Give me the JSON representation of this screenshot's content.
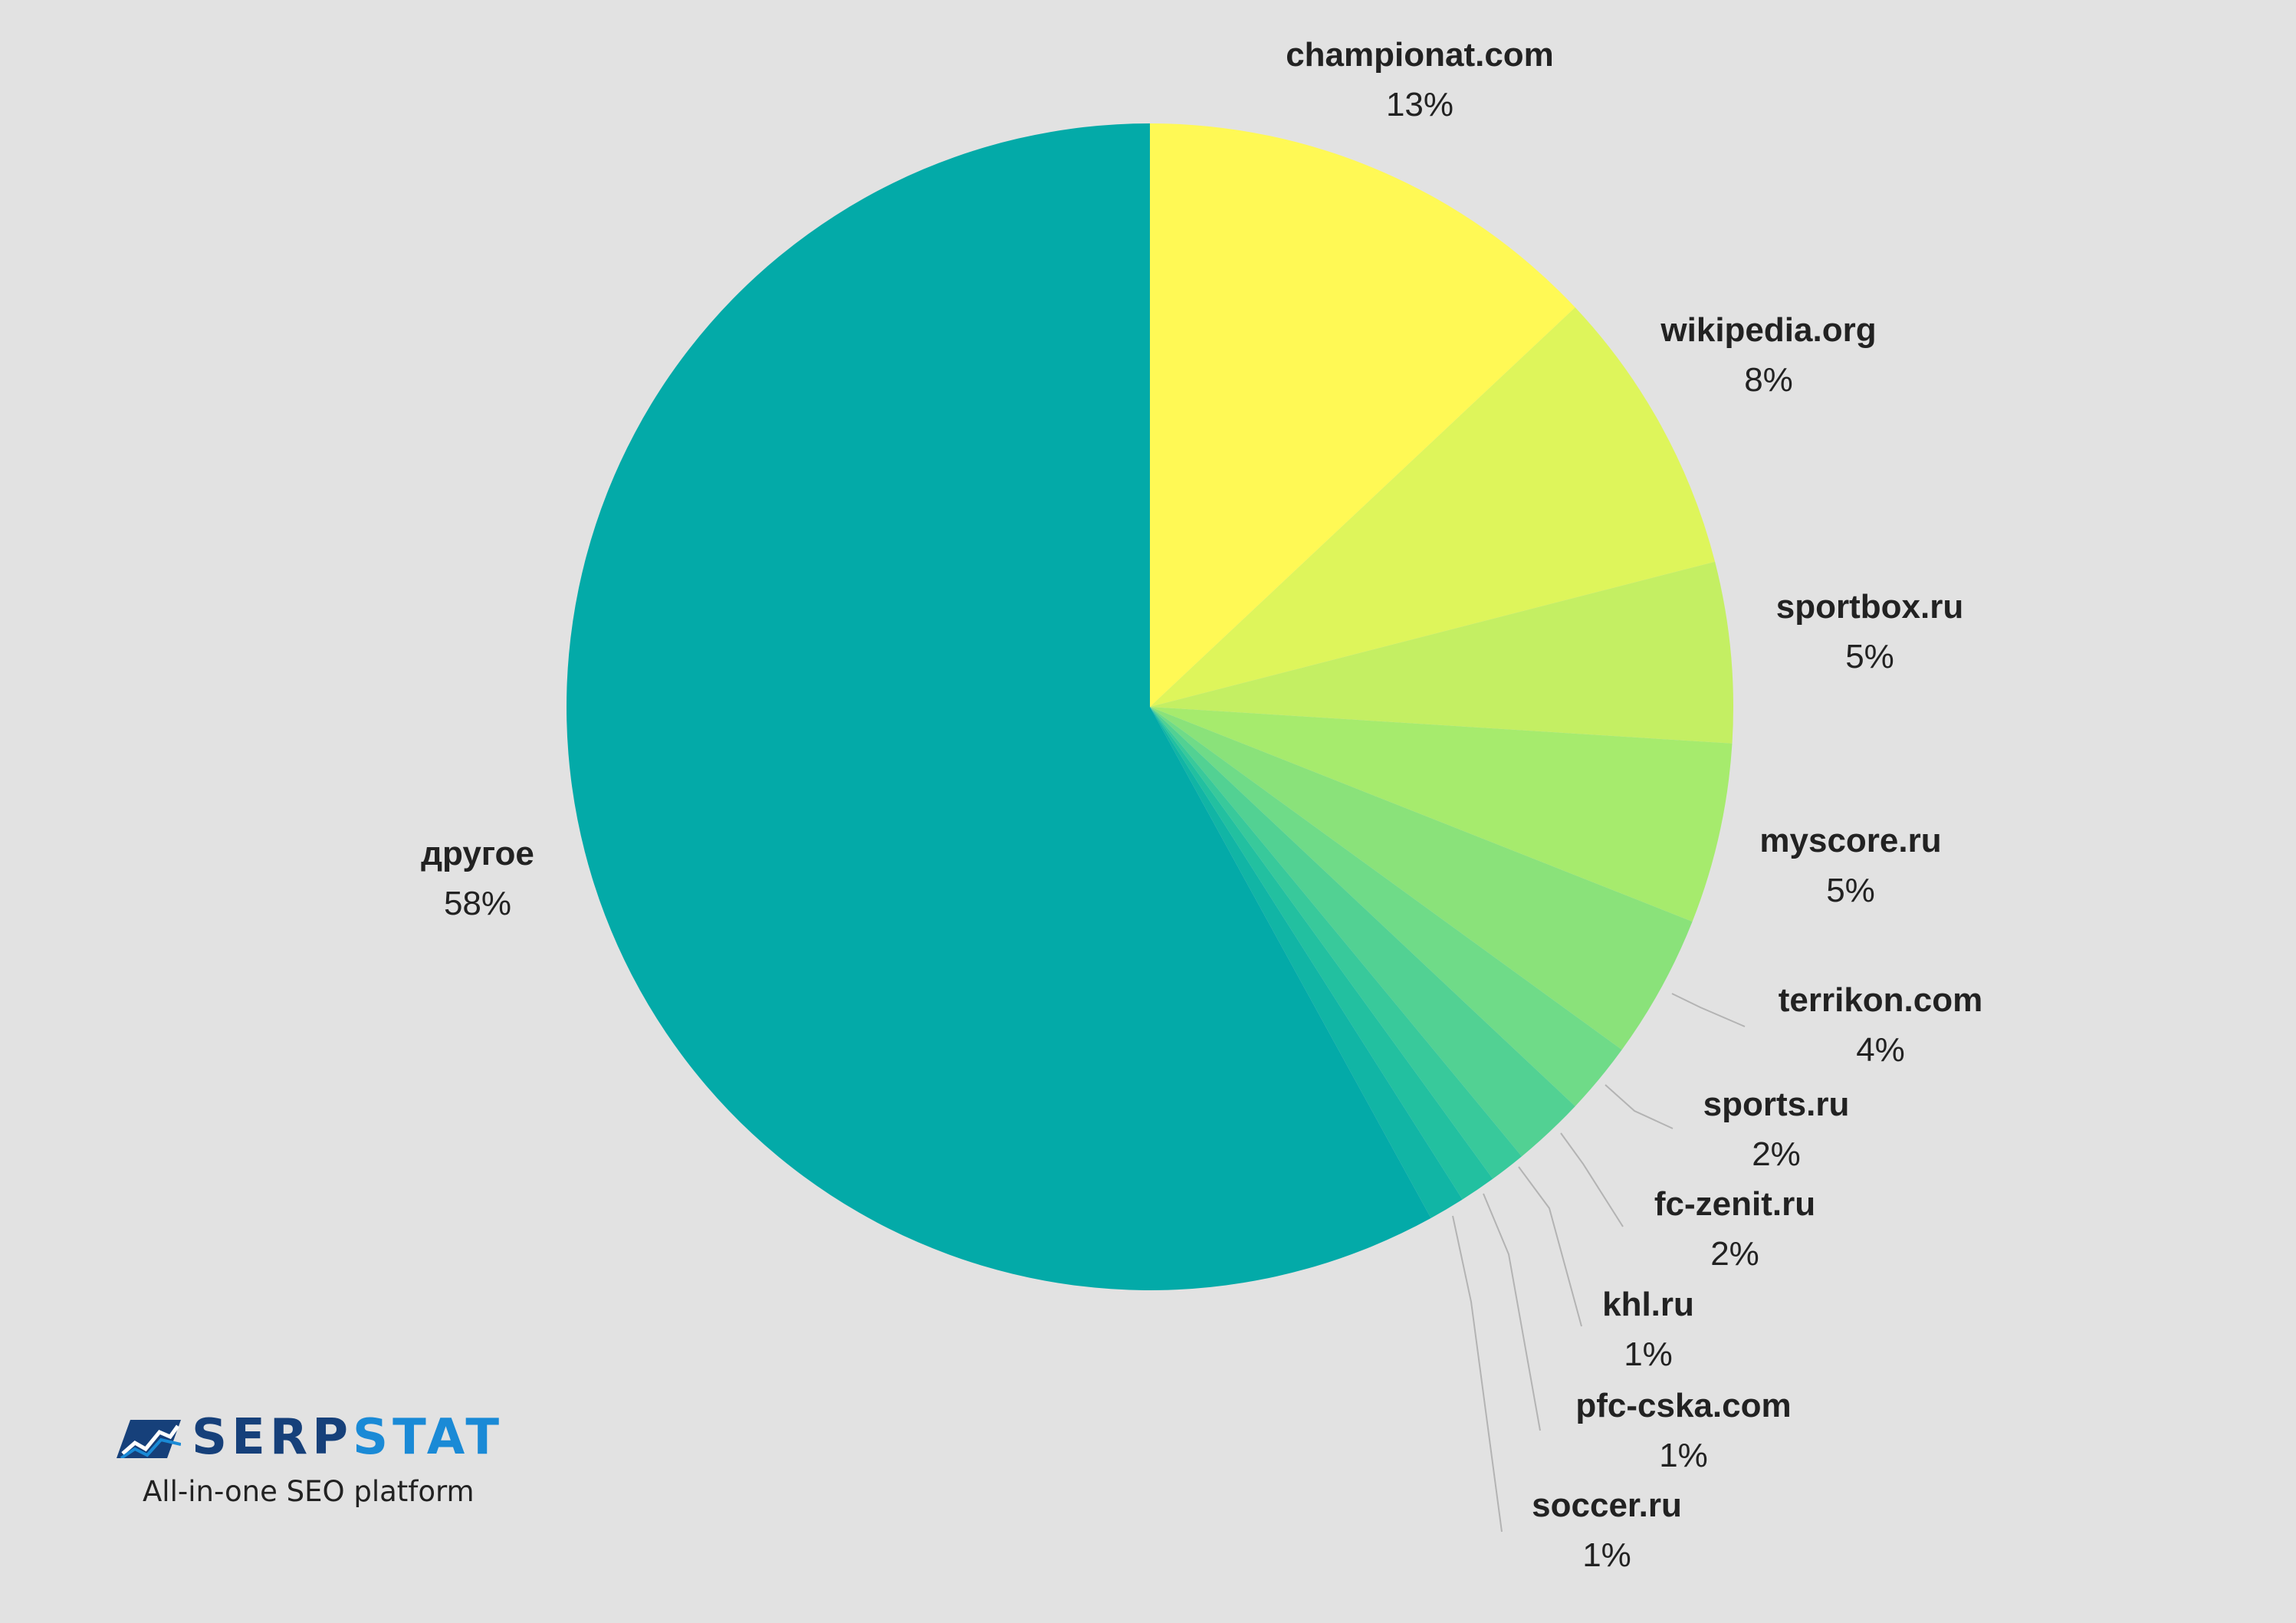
{
  "chart_data": {
    "type": "pie",
    "title": "",
    "slices": [
      {
        "label": "championat.com",
        "value": 13,
        "display": "13%",
        "color": "#fff955"
      },
      {
        "label": "wikipedia.org",
        "value": 8,
        "display": "8%",
        "color": "#def55b"
      },
      {
        "label": "sportbox.ru",
        "value": 5,
        "display": "5%",
        "color": "#c4ef63"
      },
      {
        "label": "myscore.ru",
        "value": 5,
        "display": "5%",
        "color": "#a6eb6d"
      },
      {
        "label": "terrikon.com",
        "value": 4,
        "display": "4%",
        "color": "#8ae27a"
      },
      {
        "label": "sports.ru",
        "value": 2,
        "display": "2%",
        "color": "#6fdb88"
      },
      {
        "label": "fc-zenit.ru",
        "value": 2,
        "display": "2%",
        "color": "#52d193"
      },
      {
        "label": "khl.ru",
        "value": 1,
        "display": "1%",
        "color": "#38c99b"
      },
      {
        "label": "pfc-cska.com",
        "value": 1,
        "display": "1%",
        "color": "#22c0a0"
      },
      {
        "label": "soccer.ru",
        "value": 1,
        "display": "1%",
        "color": "#11b5a5"
      },
      {
        "label": "другое",
        "value": 58,
        "display": "58%",
        "color": "#03aaa8"
      }
    ],
    "start_angle": "12 o'clock",
    "direction": "clockwise",
    "legend": "none"
  },
  "brand": {
    "name_part_a": "SERP",
    "name_part_b": "STAT",
    "tagline": "All-in-one SEO platform",
    "mark_icon": "serpstat-logo-icon"
  }
}
